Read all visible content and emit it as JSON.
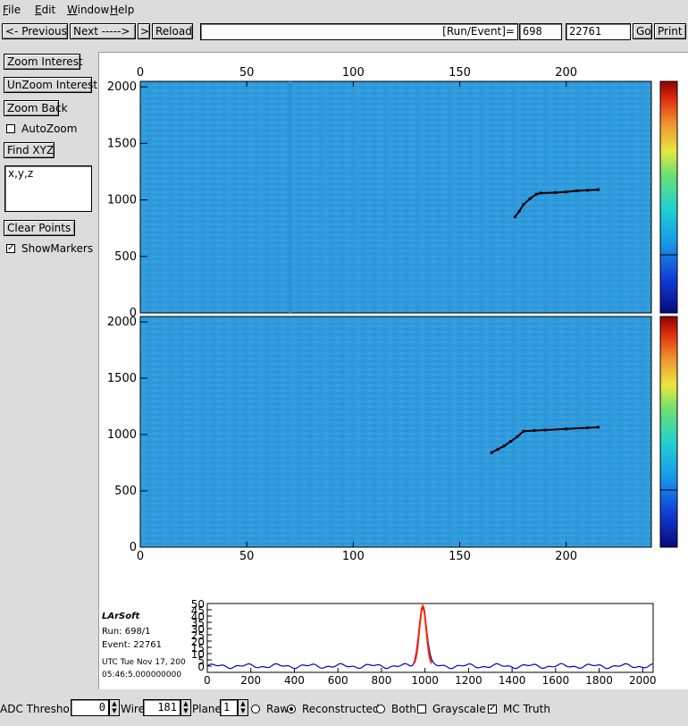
{
  "menu": {
    "file": "File",
    "edit": "Edit",
    "window": "Window",
    "help": "Help"
  },
  "toolbar": {
    "previous": "<- Previous",
    "next": "Next ----->",
    "next_arrow": ">",
    "reload": "Reload",
    "run_event_label": "[Run/Event]=",
    "run_value": "698",
    "event_value": "22761",
    "go": "Go",
    "print": "Print"
  },
  "sidebar": {
    "zoom_interest": "Zoom Interest",
    "unzoom_interest": "UnZoom Interest",
    "zoom_back": "Zoom Back",
    "autozoom_label": "AutoZoom",
    "autozoom_checked": false,
    "find_xyz": "Find XYZ",
    "xyz_text": "x,y,z",
    "clear_points": "Clear Points",
    "showmarkers_label": "ShowMarkers",
    "showmarkers_checked": true
  },
  "event_info": {
    "software": "LArSoft",
    "run": "Run:   698/1",
    "event": "Event: 22761",
    "utc": "UTC Tue Nov 17, 200",
    "time": "05:46:5.000000000"
  },
  "bottom_bar": {
    "adc_threshold_label": "ADC Threshold",
    "adc_threshold_value": "0",
    "wire_label": "Wire",
    "wire_value": "181",
    "plane_label": "Plane",
    "plane_value": "1",
    "raw_label": "Raw",
    "reconstructed_label": "Reconstructed",
    "both_label": "Both",
    "grayscale_label": "Grayscale",
    "mc_truth_label": "MC Truth",
    "selected_mode": "Reconstructed",
    "grayscale_checked": false,
    "mc_truth_checked": true
  },
  "colors": {
    "background": "#2f9adc",
    "track": "#000000",
    "waveform": "#0000cc",
    "peak": "#ff2200"
  },
  "chart_data": [
    {
      "type": "heatmap",
      "name": "upper-plane-view",
      "xlim": [
        0,
        240
      ],
      "ylim": [
        0,
        2048
      ],
      "xticks": [
        "0",
        "50",
        "100",
        "150",
        "200"
      ],
      "yticks": [
        "0",
        "500",
        "1000",
        "1500",
        "2000"
      ],
      "x_axis_position": "top",
      "track": {
        "x": [
          176,
          178,
          180,
          183,
          186,
          188,
          195,
          200,
          205,
          210,
          215
        ],
        "y": [
          850,
          900,
          960,
          1010,
          1050,
          1060,
          1065,
          1070,
          1080,
          1085,
          1090
        ]
      }
    },
    {
      "type": "heatmap",
      "name": "lower-plane-view",
      "xlim": [
        0,
        240
      ],
      "ylim": [
        0,
        2048
      ],
      "xticks": [
        "0",
        "50",
        "100",
        "150",
        "200"
      ],
      "yticks": [
        "0",
        "500",
        "1000",
        "1500",
        "2000"
      ],
      "x_axis_position": "bottom",
      "track": {
        "x": [
          165,
          168,
          171,
          174,
          177,
          180,
          185,
          190,
          200,
          210,
          215
        ],
        "y": [
          840,
          870,
          900,
          940,
          980,
          1030,
          1035,
          1040,
          1050,
          1060,
          1065
        ]
      }
    },
    {
      "type": "line",
      "name": "wire-waveform",
      "xlim": [
        0,
        2048
      ],
      "ylim": [
        -5,
        50
      ],
      "xticks": [
        "0",
        "200",
        "400",
        "600",
        "800",
        "1000",
        "1200",
        "1400",
        "1600",
        "1800",
        "2000"
      ],
      "yticks": [
        "0",
        "5",
        "10",
        "15",
        "20",
        "25",
        "30",
        "35",
        "40",
        "45",
        "50"
      ],
      "peak": {
        "x": 990,
        "y": 48
      }
    }
  ]
}
